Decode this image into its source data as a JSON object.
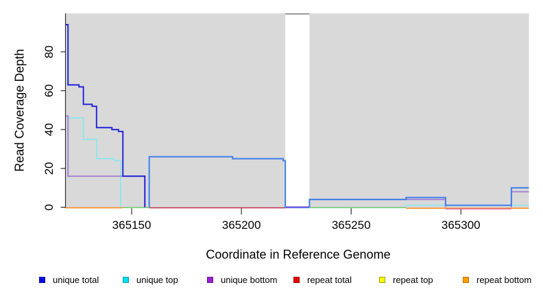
{
  "chart_data": {
    "type": "line",
    "subtype": "step-coverage-plot",
    "title": "",
    "xlabel": "Coordinate in Reference Genome",
    "ylabel": "Read Coverage Depth",
    "xlim": [
      365120,
      365331
    ],
    "ylim": [
      0,
      100
    ],
    "x_ticks": [
      365150,
      365200,
      365250,
      365300
    ],
    "y_ticks": [
      0,
      20,
      40,
      60,
      80
    ],
    "grid": false,
    "panel_background": "#d9d9d9",
    "gap_region": {
      "x_start": 365220,
      "x_end": 365231,
      "fill": "#ffffff",
      "top_border_color": "#8d8d8d"
    },
    "series": [
      {
        "name": "unique total",
        "color": "#2727d8",
        "color_alt": "#3f7fe8",
        "color_alt_from_x": 365156,
        "steps": [
          [
            365120,
            94
          ],
          [
            365121,
            63
          ],
          [
            365126,
            62
          ],
          [
            365128,
            53
          ],
          [
            365132,
            52
          ],
          [
            365134,
            41
          ],
          [
            365141,
            40
          ],
          [
            365144,
            39
          ],
          [
            365146,
            16
          ],
          [
            365156,
            0
          ],
          [
            365158,
            26
          ],
          [
            365196,
            25
          ],
          [
            365219,
            24
          ],
          [
            365220,
            0
          ],
          [
            365231,
            4
          ],
          [
            365275,
            5
          ],
          [
            365293,
            1
          ],
          [
            365323,
            10
          ]
        ],
        "x_end": 365331
      },
      {
        "name": "unique top",
        "color": "#8ae6ef",
        "steps": [
          [
            365120,
            47
          ],
          [
            365121,
            46
          ],
          [
            365128,
            35
          ],
          [
            365134,
            25
          ],
          [
            365142,
            24
          ],
          [
            365145,
            0
          ],
          [
            365275,
            1
          ]
        ],
        "x_end": 365331
      },
      {
        "name": "unique bottom",
        "color": "#a57fd5",
        "steps": [
          [
            365120,
            47
          ],
          [
            365121,
            16
          ],
          [
            365156,
            0
          ],
          [
            365231,
            4
          ],
          [
            365293,
            0
          ],
          [
            365323,
            8
          ]
        ],
        "x_end": 365331
      },
      {
        "name": "repeat total",
        "color": "#c53d5c",
        "steps": [
          [
            365120,
            0
          ]
        ],
        "x_end": 365331
      },
      {
        "name": "repeat top",
        "color": "#f0f000",
        "steps": [
          [
            365120,
            0
          ]
        ],
        "x_end": 365331
      },
      {
        "name": "repeat bottom",
        "color": "#ff8c1f",
        "steps": [
          [
            365120,
            0
          ]
        ],
        "x_end": 365331
      }
    ],
    "zero_line_segments": [
      {
        "series": "repeat bottom",
        "color": "#ff8c1f",
        "x1": 365120,
        "x2": 365146,
        "dy": 0.8
      },
      {
        "series": "repeat top over unique top",
        "color": "#74cb74",
        "x1": 365146,
        "x2": 365158,
        "dy": 0.3
      },
      {
        "series": "repeat total",
        "color": "#c53d5c",
        "x1": 365158,
        "x2": 365220,
        "dy": 0.8
      },
      {
        "series": "unique bottom",
        "color": "#9d7ade",
        "x1": 365220,
        "x2": 365231,
        "dy": -0.7
      },
      {
        "series": "unique total",
        "color": "#4a55e8",
        "x1": 365220,
        "x2": 365231,
        "dy": 0.5
      },
      {
        "series": "repeat top over unique top",
        "color": "#74cb74",
        "x1": 365231,
        "x2": 365275,
        "dy": 0.4
      },
      {
        "series": "repeat bottom",
        "color": "#ff8c1f",
        "x1": 365275,
        "x2": 365331,
        "dy": 1.4
      },
      {
        "series": "repeat total",
        "color": "#df6f93",
        "x1": 365293,
        "x2": 365323,
        "dy": 2.3
      }
    ],
    "legend": [
      {
        "label": "unique total",
        "fill": "#0b0bdf",
        "border": "#0909a8"
      },
      {
        "label": "unique top",
        "fill": "#00dfee",
        "border": "#1f9aaa"
      },
      {
        "label": "unique bottom",
        "fill": "#9c1fd4",
        "border": "#6d1896"
      },
      {
        "label": "repeat total",
        "fill": "#e60000",
        "border": "#a00000"
      },
      {
        "label": "repeat top",
        "fill": "#fdfd00",
        "border": "#a3a300"
      },
      {
        "label": "repeat bottom",
        "fill": "#ff9d00",
        "border": "#c27300"
      }
    ],
    "legend_position": "bottom"
  }
}
